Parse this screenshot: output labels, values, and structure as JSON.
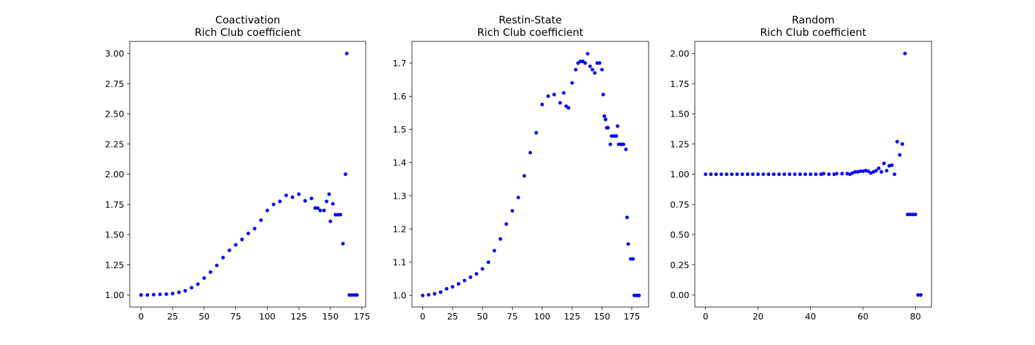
{
  "chart_data": [
    {
      "type": "scatter",
      "title_line1": "Coactivation",
      "title_line2": "Rich Club coefficient",
      "xlim": [
        -9,
        178
      ],
      "ylim": [
        0.9,
        3.1
      ],
      "xticks": [
        0,
        25,
        50,
        75,
        100,
        125,
        150,
        175
      ],
      "xtick_labels": [
        "0",
        "25",
        "50",
        "75",
        "100",
        "125",
        "150",
        "175"
      ],
      "yticks": [
        1.0,
        1.25,
        1.5,
        1.75,
        2.0,
        2.25,
        2.5,
        2.75,
        3.0
      ],
      "ytick_labels": [
        "1.00",
        "1.25",
        "1.50",
        "1.75",
        "2.00",
        "2.25",
        "2.50",
        "2.75",
        "3.00"
      ],
      "color": "#0000ff",
      "points": [
        [
          0,
          1.0
        ],
        [
          5,
          1.0
        ],
        [
          10,
          1.003
        ],
        [
          15,
          1.005
        ],
        [
          20,
          1.007
        ],
        [
          25,
          1.012
        ],
        [
          30,
          1.022
        ],
        [
          35,
          1.035
        ],
        [
          40,
          1.06
        ],
        [
          45,
          1.09
        ],
        [
          50,
          1.14
        ],
        [
          55,
          1.19
        ],
        [
          60,
          1.245
        ],
        [
          65,
          1.31
        ],
        [
          70,
          1.37
        ],
        [
          75,
          1.415
        ],
        [
          80,
          1.46
        ],
        [
          85,
          1.51
        ],
        [
          90,
          1.55
        ],
        [
          95,
          1.62
        ],
        [
          100,
          1.7
        ],
        [
          105,
          1.75
        ],
        [
          110,
          1.775
        ],
        [
          115,
          1.825
        ],
        [
          120,
          1.81
        ],
        [
          125,
          1.835
        ],
        [
          130,
          1.78
        ],
        [
          135,
          1.8
        ],
        [
          138,
          1.72
        ],
        [
          140,
          1.72
        ],
        [
          142,
          1.7
        ],
        [
          145,
          1.7
        ],
        [
          147,
          1.775
        ],
        [
          149,
          1.835
        ],
        [
          150,
          1.61
        ],
        [
          152,
          1.755
        ],
        [
          154,
          1.665
        ],
        [
          156,
          1.665
        ],
        [
          158,
          1.665
        ],
        [
          160,
          1.425
        ],
        [
          162,
          2.0
        ],
        [
          163,
          3.0
        ],
        [
          165,
          1.0
        ],
        [
          167,
          1.0
        ],
        [
          169,
          1.0
        ],
        [
          171,
          1.0
        ]
      ]
    },
    {
      "type": "scatter",
      "title_line1": "Restin-State",
      "title_line2": "Rich Club coefficient",
      "xlim": [
        -9,
        189
      ],
      "ylim": [
        0.965,
        1.765
      ],
      "xticks": [
        0,
        25,
        50,
        75,
        100,
        125,
        150,
        175
      ],
      "xtick_labels": [
        "0",
        "25",
        "50",
        "75",
        "100",
        "125",
        "150",
        "175"
      ],
      "yticks": [
        1.0,
        1.1,
        1.2,
        1.3,
        1.4,
        1.5,
        1.6,
        1.7
      ],
      "ytick_labels": [
        "1.0",
        "1.1",
        "1.2",
        "1.3",
        "1.4",
        "1.5",
        "1.6",
        "1.7"
      ],
      "color": "#0000ff",
      "points": [
        [
          0,
          1.0
        ],
        [
          5,
          1.002
        ],
        [
          10,
          1.005
        ],
        [
          15,
          1.01
        ],
        [
          20,
          1.02
        ],
        [
          25,
          1.026
        ],
        [
          30,
          1.035
        ],
        [
          35,
          1.045
        ],
        [
          40,
          1.055
        ],
        [
          45,
          1.065
        ],
        [
          50,
          1.08
        ],
        [
          55,
          1.1
        ],
        [
          60,
          1.135
        ],
        [
          65,
          1.17
        ],
        [
          70,
          1.215
        ],
        [
          75,
          1.255
        ],
        [
          80,
          1.295
        ],
        [
          85,
          1.36
        ],
        [
          90,
          1.43
        ],
        [
          95,
          1.49
        ],
        [
          100,
          1.575
        ],
        [
          105,
          1.6
        ],
        [
          110,
          1.605
        ],
        [
          115,
          1.58
        ],
        [
          118,
          1.61
        ],
        [
          120,
          1.57
        ],
        [
          122,
          1.565
        ],
        [
          125,
          1.64
        ],
        [
          128,
          1.68
        ],
        [
          130,
          1.7
        ],
        [
          132,
          1.705
        ],
        [
          134,
          1.705
        ],
        [
          136,
          1.7
        ],
        [
          138,
          1.728
        ],
        [
          140,
          1.69
        ],
        [
          142,
          1.68
        ],
        [
          144,
          1.67
        ],
        [
          146,
          1.7
        ],
        [
          148,
          1.7
        ],
        [
          150,
          1.68
        ],
        [
          151,
          1.605
        ],
        [
          152,
          1.54
        ],
        [
          153,
          1.53
        ],
        [
          154,
          1.505
        ],
        [
          155,
          1.505
        ],
        [
          157,
          1.455
        ],
        [
          158,
          1.48
        ],
        [
          160,
          1.48
        ],
        [
          162,
          1.48
        ],
        [
          163,
          1.51
        ],
        [
          164,
          1.455
        ],
        [
          166,
          1.455
        ],
        [
          168,
          1.455
        ],
        [
          170,
          1.44
        ],
        [
          171,
          1.235
        ],
        [
          172,
          1.155
        ],
        [
          174,
          1.11
        ],
        [
          176,
          1.11
        ],
        [
          177,
          1.0
        ],
        [
          179,
          1.0
        ],
        [
          181,
          1.0
        ]
      ]
    },
    {
      "type": "scatter",
      "title_line1": "Random",
      "title_line2": "Rich Club coefficient",
      "xlim": [
        -4.1,
        86.1
      ],
      "ylim": [
        -0.1,
        2.1
      ],
      "xticks": [
        0,
        20,
        40,
        60,
        80
      ],
      "xtick_labels": [
        "0",
        "20",
        "40",
        "60",
        "80"
      ],
      "yticks": [
        0.0,
        0.25,
        0.5,
        0.75,
        1.0,
        1.25,
        1.5,
        1.75,
        2.0
      ],
      "ytick_labels": [
        "0.00",
        "0.25",
        "0.50",
        "0.75",
        "1.00",
        "1.25",
        "1.50",
        "1.75",
        "2.00"
      ],
      "color": "#0000ff",
      "points": [
        [
          0,
          1.0
        ],
        [
          2,
          1.0
        ],
        [
          4,
          1.0
        ],
        [
          6,
          1.0
        ],
        [
          8,
          1.0
        ],
        [
          10,
          1.0
        ],
        [
          12,
          1.0
        ],
        [
          14,
          1.0
        ],
        [
          16,
          1.0
        ],
        [
          18,
          1.0
        ],
        [
          20,
          1.0
        ],
        [
          22,
          1.0
        ],
        [
          24,
          1.0
        ],
        [
          26,
          1.0
        ],
        [
          28,
          1.0
        ],
        [
          30,
          1.0
        ],
        [
          32,
          1.0
        ],
        [
          34,
          1.0
        ],
        [
          36,
          1.0
        ],
        [
          38,
          1.0
        ],
        [
          40,
          1.0
        ],
        [
          42,
          1.0
        ],
        [
          44,
          1.0
        ],
        [
          45,
          1.005
        ],
        [
          47,
          1.0
        ],
        [
          49,
          1.0
        ],
        [
          50,
          1.005
        ],
        [
          52,
          1.005
        ],
        [
          54,
          1.005
        ],
        [
          55,
          1.0
        ],
        [
          56,
          1.01
        ],
        [
          57,
          1.02
        ],
        [
          58,
          1.02
        ],
        [
          59,
          1.025
        ],
        [
          60,
          1.025
        ],
        [
          61,
          1.03
        ],
        [
          62,
          1.025
        ],
        [
          63,
          1.01
        ],
        [
          64,
          1.02
        ],
        [
          65,
          1.03
        ],
        [
          66,
          1.05
        ],
        [
          67,
          1.02
        ],
        [
          68,
          1.09
        ],
        [
          69,
          1.03
        ],
        [
          70,
          1.07
        ],
        [
          71,
          1.075
        ],
        [
          72,
          1.0
        ],
        [
          73,
          1.27
        ],
        [
          74,
          1.16
        ],
        [
          75,
          1.25
        ],
        [
          76,
          2.0
        ],
        [
          77,
          0.667
        ],
        [
          78,
          0.667
        ],
        [
          79,
          0.667
        ],
        [
          80,
          0.667
        ],
        [
          81,
          0.0
        ],
        [
          82,
          0.0
        ]
      ]
    }
  ]
}
